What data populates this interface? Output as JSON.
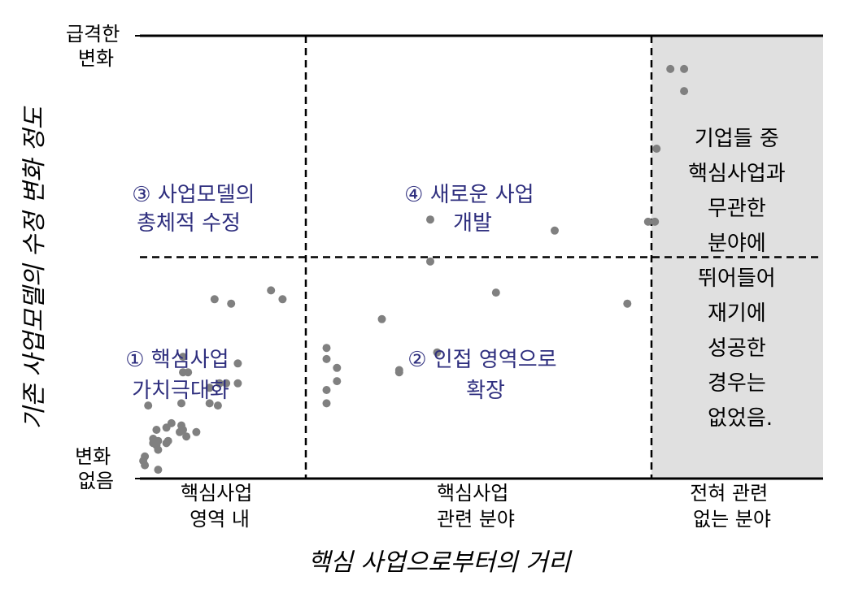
{
  "chart_data": {
    "type": "scatter",
    "xlabel": "핵심 사업으로부터의 거리",
    "ylabel": "기존 사업모델의 수정 변화 정도",
    "xlim": [
      0,
      3
    ],
    "ylim": [
      0,
      2
    ],
    "x_ticks": [
      [
        "핵심사업",
        "영역 내"
      ],
      [
        "핵심사업",
        "관련 분야"
      ],
      [
        "전혀 관련",
        "없는 분야"
      ]
    ],
    "y_ticks": {
      "top": [
        "급격한",
        "변화"
      ],
      "bottom": [
        "변화",
        "없음"
      ]
    },
    "quadrants": [
      {
        "lines": [
          "① 핵심사업",
          "가치극대화"
        ]
      },
      {
        "lines": [
          "② 인접 영역으로",
          "확장"
        ]
      },
      {
        "lines": [
          "③ 사업모델의",
          "총체적 수정"
        ]
      },
      {
        "lines": [
          "④ 새로운 사업",
          "개발"
        ]
      }
    ],
    "shaded_note": [
      "기업들 중",
      "핵심사업과",
      "무관한",
      "분야에",
      "뛰어들어",
      "재기에",
      "성공한",
      "경우는",
      "없었음."
    ],
    "grid": false,
    "marker_color": "#808080",
    "shade_color": "#e0e0e0",
    "points": [
      [
        0.02,
        0.08
      ],
      [
        0.03,
        0.1
      ],
      [
        0.11,
        0.04
      ],
      [
        0.08,
        0.18
      ],
      [
        0.1,
        0.15
      ],
      [
        0.11,
        0.13
      ],
      [
        0.08,
        0.16
      ],
      [
        0.11,
        0.17
      ],
      [
        0.16,
        0.16
      ],
      [
        0.17,
        0.17
      ],
      [
        0.16,
        0.23
      ],
      [
        0.19,
        0.25
      ],
      [
        0.24,
        0.21
      ],
      [
        0.25,
        0.24
      ],
      [
        0.26,
        0.22
      ],
      [
        0.28,
        0.19
      ],
      [
        0.25,
        0.34
      ],
      [
        0.34,
        0.21
      ],
      [
        0.05,
        0.33
      ],
      [
        0.26,
        0.55
      ],
      [
        0.42,
        0.41
      ],
      [
        0.42,
        0.34
      ],
      [
        0.47,
        0.33
      ],
      [
        0.48,
        0.43
      ],
      [
        0.52,
        0.43
      ],
      [
        0.59,
        0.43
      ],
      [
        0.59,
        0.52
      ],
      [
        0.45,
        0.81
      ],
      [
        0.55,
        0.79
      ],
      [
        0.79,
        0.85
      ],
      [
        0.86,
        0.81
      ],
      [
        0.1,
        0.22
      ],
      [
        0.03,
        0.06
      ],
      [
        0.26,
        0.48
      ],
      [
        0.29,
        0.48
      ],
      [
        1.06,
        0.54
      ],
      [
        1.06,
        0.59
      ],
      [
        1.09,
        0.5
      ],
      [
        1.09,
        0.44
      ],
      [
        1.06,
        0.34
      ],
      [
        1.06,
        0.4
      ],
      [
        1.22,
        0.72
      ],
      [
        1.27,
        0.48
      ],
      [
        1.27,
        0.49
      ],
      [
        1.38,
        0.57
      ],
      [
        1.36,
        0.98
      ],
      [
        1.36,
        1.17
      ],
      [
        1.55,
        0.84
      ],
      [
        1.72,
        1.12
      ],
      [
        1.93,
        0.79
      ],
      [
        1.99,
        1.16
      ],
      [
        2.02,
        1.16
      ],
      [
        2.03,
        1.49
      ],
      [
        2.11,
        1.85
      ],
      [
        2.19,
        1.75
      ],
      [
        2.19,
        1.85
      ]
    ]
  }
}
